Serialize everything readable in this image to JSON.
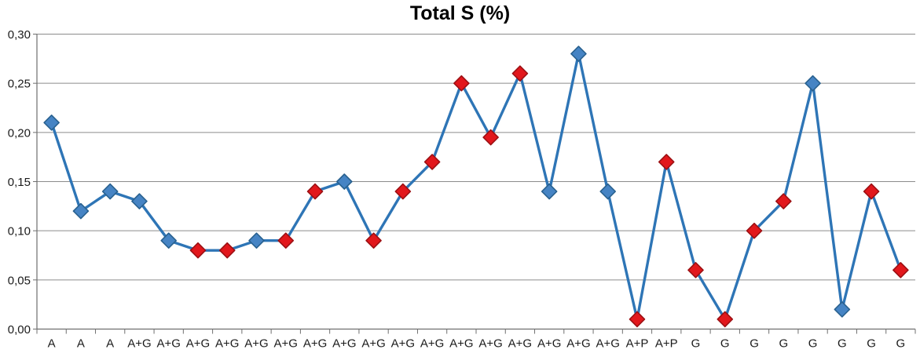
{
  "chart_data": {
    "type": "line",
    "title": "Total S (%)",
    "xlabel": "",
    "ylabel": "",
    "ylim": [
      0,
      0.3
    ],
    "yticks": [
      0,
      0.05,
      0.1,
      0.15,
      0.2,
      0.25,
      0.3
    ],
    "ytick_labels": [
      "0,00",
      "0,05",
      "0,10",
      "0,15",
      "0,20",
      "0,25",
      "0,30"
    ],
    "decimal_separator": ",",
    "grid": "horizontal",
    "legend_position": "none",
    "categories": [
      "A",
      "A",
      "A",
      "A+G",
      "A+G",
      "A+G",
      "A+G",
      "A+G",
      "A+G",
      "A+G",
      "A+G",
      "A+G",
      "A+G",
      "A+G",
      "A+G",
      "A+G",
      "A+G",
      "A+G",
      "A+G",
      "A+G",
      "A+P",
      "A+P",
      "G",
      "G",
      "G",
      "G",
      "G",
      "G",
      "G",
      "G"
    ],
    "series": [
      {
        "name": "Total S (%)",
        "marker_shape": "diamond",
        "values": [
          0.21,
          0.12,
          0.14,
          0.13,
          0.09,
          0.08,
          0.08,
          0.09,
          0.09,
          0.14,
          0.15,
          0.09,
          0.14,
          0.17,
          0.25,
          0.195,
          0.26,
          0.14,
          0.28,
          0.14,
          0.01,
          0.17,
          0.06,
          0.01,
          0.1,
          0.13,
          0.25,
          0.02,
          0.14,
          0.06
        ],
        "marker_colors": [
          "blue",
          "blue",
          "blue",
          "blue",
          "blue",
          "red",
          "red",
          "blue",
          "red",
          "red",
          "blue",
          "red",
          "red",
          "red",
          "red",
          "red",
          "red",
          "blue",
          "blue",
          "blue",
          "red",
          "red",
          "red",
          "red",
          "red",
          "red",
          "blue",
          "blue",
          "red",
          "red"
        ]
      }
    ],
    "colors": {
      "line": "#2E75B6",
      "marker_blue_fill": "#4684C4",
      "marker_blue_stroke": "#29618F",
      "marker_red_fill": "#E2171C",
      "marker_red_stroke": "#9C1013",
      "grid": "#8C8C8C",
      "axis": "#6F6F6F",
      "text": "#1A1A1A",
      "title": "#000000"
    }
  }
}
